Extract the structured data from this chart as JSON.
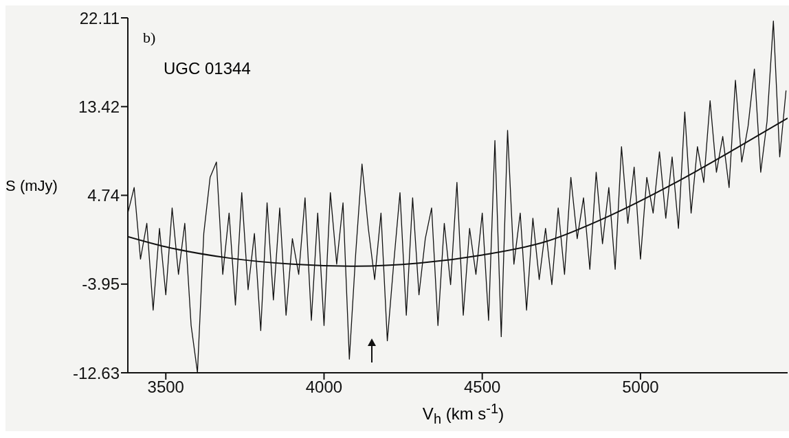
{
  "chart_data": {
    "type": "line",
    "xlabel": "V$_{h}$ (km s$^{-1}$)",
    "ylabel": "S (mJy)",
    "annotations": [
      "b)",
      "UGC 01344"
    ],
    "xlim": [
      3380,
      5465
    ],
    "xticks": [
      3500,
      4000,
      4500,
      5000
    ],
    "ylim": [
      -12.63,
      22.11
    ],
    "yticks": [
      -12.63,
      -3.95,
      4.74,
      13.42,
      22.11
    ],
    "marker": "none",
    "line_style": "solid",
    "series": [
      {
        "color": "#111111",
        "x": [
          3380,
          3400,
          3420,
          3440,
          3460,
          3480,
          3500,
          3520,
          3540,
          3560,
          3580,
          3600,
          3620,
          3640,
          3660,
          3680,
          3700,
          3720,
          3740,
          3760,
          3780,
          3800,
          3820,
          3840,
          3860,
          3880,
          3900,
          3920,
          3940,
          3960,
          3980,
          4000,
          4020,
          4040,
          4060,
          4080,
          4100,
          4120,
          4140,
          4160,
          4180,
          4200,
          4220,
          4240,
          4260,
          4280,
          4300,
          4320,
          4340,
          4360,
          4380,
          4400,
          4420,
          4440,
          4460,
          4480,
          4500,
          4520,
          4540,
          4560,
          4580,
          4600,
          4620,
          4640,
          4660,
          4680,
          4700,
          4720,
          4740,
          4760,
          4780,
          4800,
          4820,
          4840,
          4860,
          4880,
          4900,
          4920,
          4940,
          4960,
          4980,
          5000,
          5020,
          5040,
          5060,
          5080,
          5100,
          5120,
          5140,
          5160,
          5180,
          5200,
          5220,
          5240,
          5260,
          5280,
          5300,
          5320,
          5340,
          5360,
          5380,
          5400,
          5420,
          5440,
          5460
        ],
        "values": [
          3.0,
          5.5,
          -1.5,
          2.0,
          -6.5,
          1.5,
          -5.0,
          3.5,
          -3.0,
          2.0,
          -8.0,
          -12.6,
          1.0,
          6.5,
          8.0,
          -3.0,
          3.0,
          -6.0,
          5.0,
          -4.5,
          1.0,
          -8.5,
          4.0,
          -5.5,
          3.5,
          -7.0,
          0.5,
          -3.0,
          4.5,
          -7.5,
          3.0,
          -8.0,
          5.0,
          -2.0,
          4.0,
          -11.3,
          -1.0,
          7.8,
          1.5,
          -3.5,
          3.0,
          -9.5,
          -2.0,
          5.0,
          -7.0,
          4.5,
          -5.0,
          0.5,
          3.5,
          -8.0,
          2.0,
          -4.0,
          6.0,
          -7.0,
          1.5,
          -3.0,
          3.0,
          -7.5,
          10.1,
          -9.1,
          11.1,
          -2.0,
          3.0,
          -6.5,
          2.5,
          -3.5,
          1.5,
          -4.0,
          3.5,
          -3.0,
          6.5,
          0.5,
          4.5,
          -2.5,
          7.0,
          0.0,
          5.5,
          -2.5,
          9.5,
          2.0,
          7.5,
          -1.5,
          6.5,
          3.0,
          9.0,
          2.5,
          8.5,
          1.5,
          12.9,
          3.0,
          9.5,
          6.0,
          14.0,
          7.0,
          10.5,
          5.5,
          16.0,
          8.0,
          11.5,
          17.1,
          7.0,
          12.0,
          21.8,
          8.5,
          15.0
        ]
      },
      {
        "color": "#111111",
        "x": [
          3380,
          3500,
          3700,
          3900,
          4100,
          4300,
          4500,
          4700,
          4900,
          5100,
          5300,
          5465
        ],
        "values": [
          0.7,
          -0.3,
          -1.4,
          -2.0,
          -2.2,
          -1.9,
          -1.1,
          0.2,
          2.7,
          5.8,
          9.3,
          12.3
        ]
      }
    ]
  }
}
